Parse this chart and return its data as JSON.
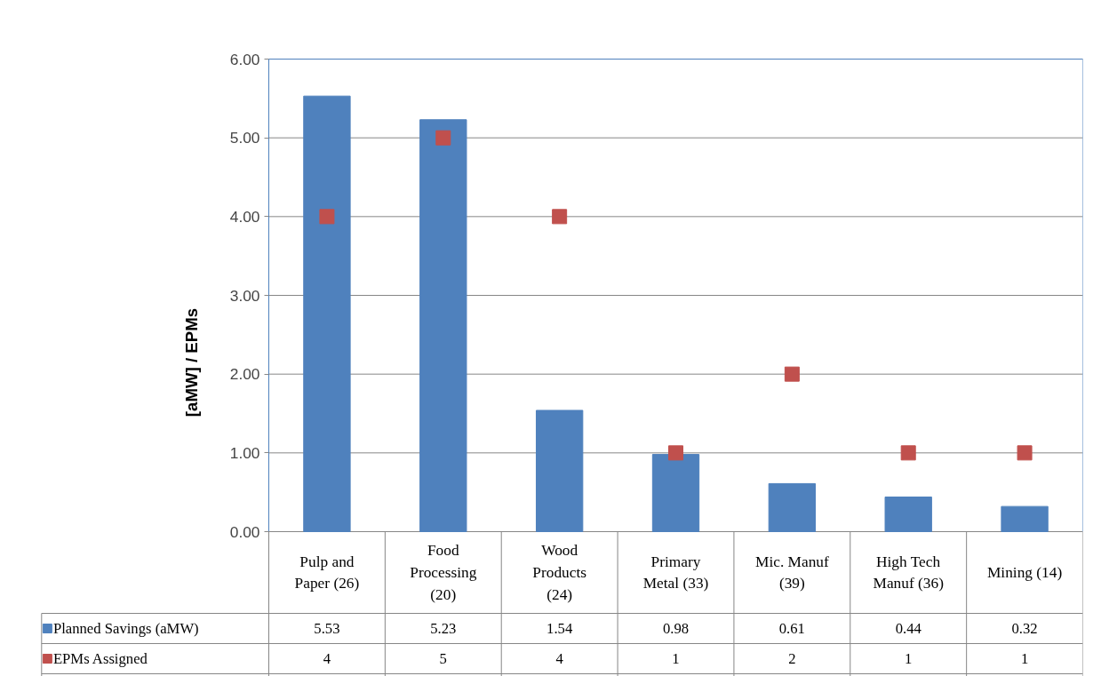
{
  "chart_data": {
    "type": "bar",
    "ylabel": "[aMW] / EPMs",
    "categories": [
      "Pulp and Paper (26)",
      "Food Processing (20)",
      "Wood Products (24)",
      "Primary Metal (33)",
      "Mic. Manuf (39)",
      "High Tech Manuf (36)",
      "Mining (14)"
    ],
    "series": [
      {
        "name": "Planned Savings (aMW)",
        "type": "bar",
        "color": "#4f81bd",
        "values": [
          5.53,
          5.23,
          1.54,
          0.98,
          0.61,
          0.44,
          0.32
        ]
      },
      {
        "name": "EPMs Assigned",
        "type": "scatter",
        "color": "#c0504d",
        "marker": "square",
        "values": [
          4,
          5,
          4,
          1,
          2,
          1,
          1
        ]
      }
    ],
    "ylim": [
      0,
      6
    ],
    "yticks": [
      {
        "value": 0,
        "label": "0.00"
      },
      {
        "value": 1,
        "label": "1.00"
      },
      {
        "value": 2,
        "label": "2.00"
      },
      {
        "value": 3,
        "label": "3.00"
      },
      {
        "value": 4,
        "label": "4.00"
      },
      {
        "value": 5,
        "label": "5.00"
      },
      {
        "value": 6,
        "label": "6.00"
      }
    ],
    "grid": "y",
    "data_labels": true,
    "legend": "bottom"
  }
}
